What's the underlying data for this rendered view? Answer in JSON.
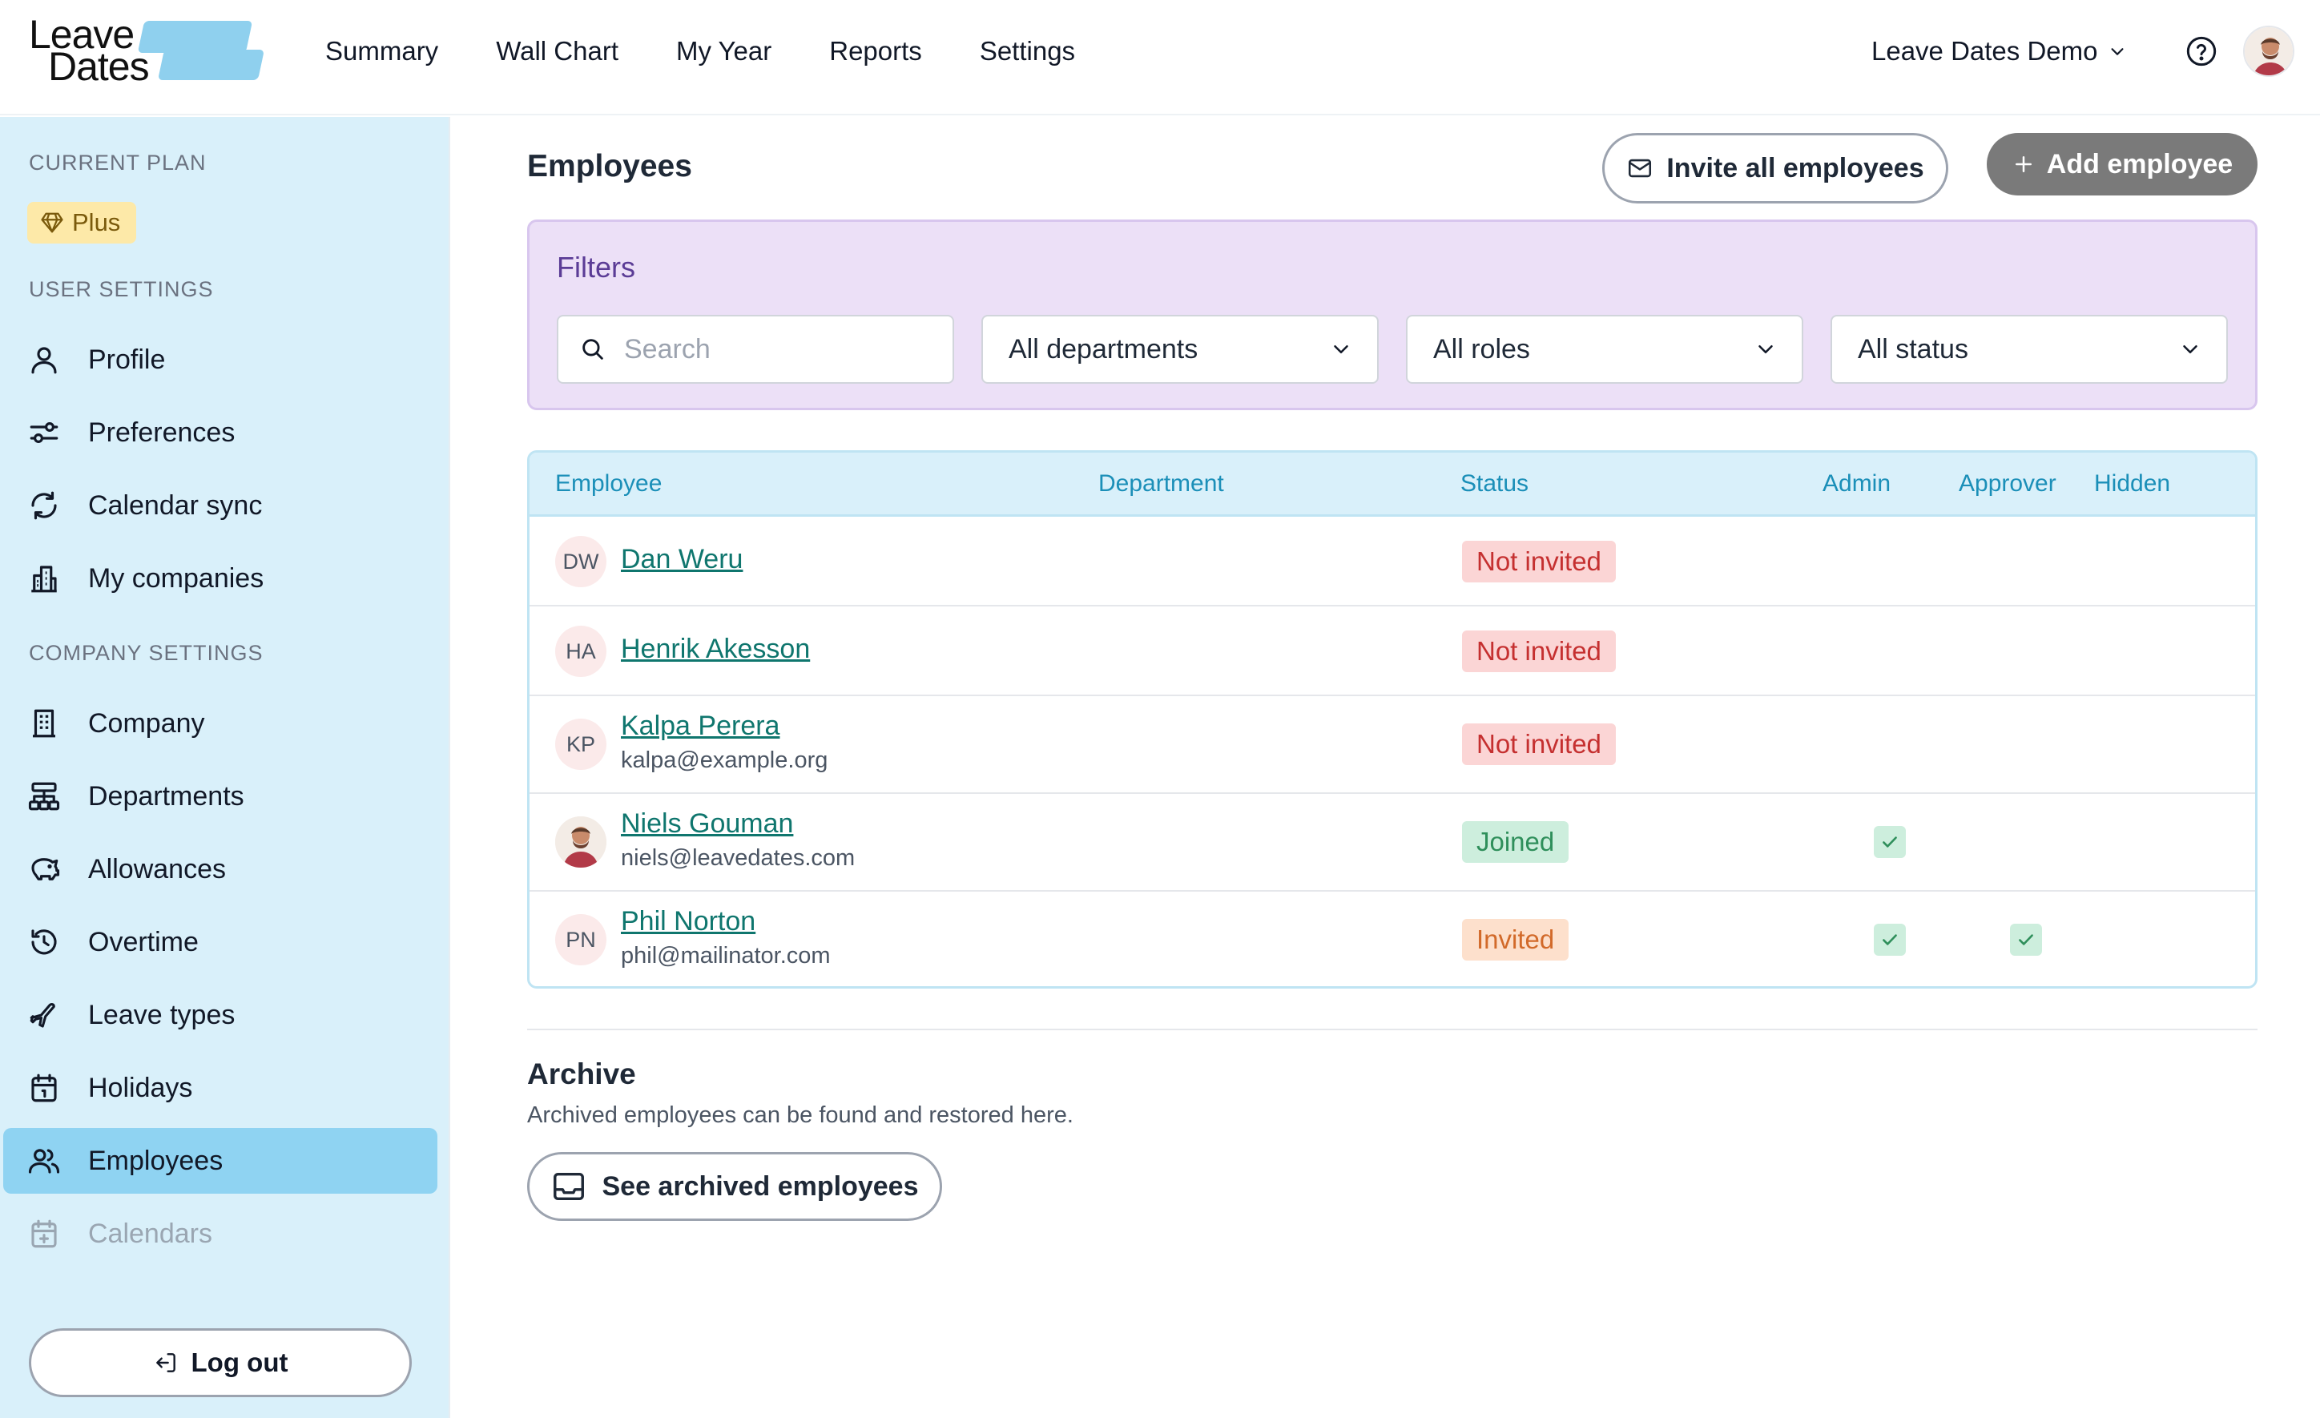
{
  "brand": {
    "logo_line1": "Leave",
    "logo_line2": "Dates",
    "accent": "#8fd0ee"
  },
  "nav": {
    "items": [
      "Summary",
      "Wall Chart",
      "My Year",
      "Reports",
      "Settings"
    ]
  },
  "company_switcher": {
    "label": "Leave Dates Demo"
  },
  "sidebar": {
    "current_plan_label": "CURRENT PLAN",
    "plan_name": "Plus",
    "user_settings_label": "USER SETTINGS",
    "company_settings_label": "COMPANY SETTINGS",
    "user_items": [
      {
        "label": "Profile",
        "icon": "user-icon"
      },
      {
        "label": "Preferences",
        "icon": "sliders-icon"
      },
      {
        "label": "Calendar sync",
        "icon": "sync-icon"
      },
      {
        "label": "My companies",
        "icon": "building-icon"
      }
    ],
    "company_items": [
      {
        "label": "Company",
        "icon": "office-icon"
      },
      {
        "label": "Departments",
        "icon": "org-chart-icon"
      },
      {
        "label": "Allowances",
        "icon": "piggy-bank-icon"
      },
      {
        "label": "Overtime",
        "icon": "clock-rewind-icon"
      },
      {
        "label": "Leave types",
        "icon": "plane-icon"
      },
      {
        "label": "Holidays",
        "icon": "calendar-icon"
      },
      {
        "label": "Employees",
        "icon": "users-icon",
        "active": true
      },
      {
        "label": "Calendars",
        "icon": "calendar-plus-icon",
        "disabled": true
      }
    ],
    "logout_label": "Log out"
  },
  "main": {
    "title": "Employees",
    "invite_all_label": "Invite all employees",
    "add_employee_label": "Add employee",
    "filters": {
      "title": "Filters",
      "search_placeholder": "Search",
      "department_value": "All departments",
      "role_value": "All roles",
      "status_value": "All status"
    },
    "table": {
      "headers": [
        "Employee",
        "Department",
        "Status",
        "Admin",
        "Approver",
        "Hidden"
      ],
      "rows": [
        {
          "initials": "DW",
          "name": "Dan Weru",
          "email": "",
          "status": "Not invited",
          "admin": false,
          "approver": false
        },
        {
          "initials": "HA",
          "name": "Henrik Akesson",
          "email": "",
          "status": "Not invited",
          "admin": false,
          "approver": false
        },
        {
          "initials": "KP",
          "name": "Kalpa Perera",
          "email": "kalpa@example.org",
          "status": "Not invited",
          "admin": false,
          "approver": false
        },
        {
          "initials": "",
          "name": "Niels Gouman",
          "email": "niels@leavedates.com",
          "status": "Joined",
          "admin": true,
          "approver": false
        },
        {
          "initials": "PN",
          "name": "Phil Norton",
          "email": "phil@mailinator.com",
          "status": "Invited",
          "admin": true,
          "approver": true
        }
      ]
    },
    "archive": {
      "title": "Archive",
      "description": "Archived employees can be found and restored here.",
      "button_label": "See archived employees"
    }
  }
}
